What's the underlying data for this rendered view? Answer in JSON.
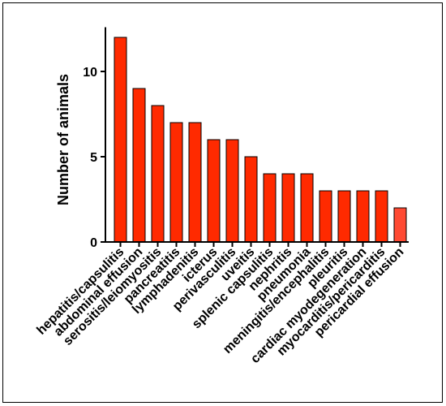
{
  "chart_data": {
    "type": "bar",
    "title": "",
    "xlabel": "",
    "ylabel": "Number of animals",
    "ylim": [
      0,
      12.5
    ],
    "yticks": [
      0,
      5,
      10
    ],
    "grid": false,
    "categories": [
      "hepatitis/capsulitis",
      "abdominal effusion",
      "serositis/leiomyositis",
      "pancreatitis",
      "lymphadenitis",
      "icterus",
      "perivasculitis",
      "uveitis",
      "splenic capsulitis",
      "nephritis",
      "pneumonia",
      "meningitis/encephalitis",
      "pleuritis",
      "cardiac myodegeneration",
      "myocarditis/pericarditis",
      "pericardial effusion"
    ],
    "values": [
      12,
      9,
      8,
      7,
      7,
      6,
      6,
      5,
      4,
      4,
      4,
      3,
      3,
      3,
      3,
      2
    ],
    "colors": {
      "bar": "#ff2a00",
      "bar_last": "#ff4a33",
      "axis": "#000000"
    }
  }
}
